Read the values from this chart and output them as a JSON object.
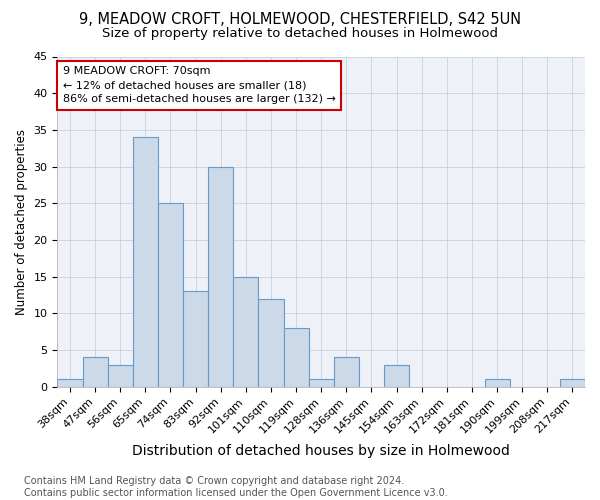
{
  "title1": "9, MEADOW CROFT, HOLMEWOOD, CHESTERFIELD, S42 5UN",
  "title2": "Size of property relative to detached houses in Holmewood",
  "xlabel": "Distribution of detached houses by size in Holmewood",
  "ylabel": "Number of detached properties",
  "categories": [
    "38sqm",
    "47sqm",
    "56sqm",
    "65sqm",
    "74sqm",
    "83sqm",
    "92sqm",
    "101sqm",
    "110sqm",
    "119sqm",
    "128sqm",
    "136sqm",
    "145sqm",
    "154sqm",
    "163sqm",
    "172sqm",
    "181sqm",
    "190sqm",
    "199sqm",
    "208sqm",
    "217sqm"
  ],
  "values": [
    1,
    4,
    3,
    34,
    25,
    13,
    30,
    15,
    12,
    8,
    1,
    4,
    0,
    3,
    0,
    0,
    0,
    1,
    0,
    0,
    1
  ],
  "bar_color": "#ccd9e8",
  "bar_edge_color": "#6699cc",
  "annotation_text": "9 MEADOW CROFT: 70sqm\n← 12% of detached houses are smaller (18)\n86% of semi-detached houses are larger (132) →",
  "annotation_box_color": "#ffffff",
  "annotation_box_edge": "#cc0000",
  "ylim": [
    0,
    45
  ],
  "yticks": [
    0,
    5,
    10,
    15,
    20,
    25,
    30,
    35,
    40,
    45
  ],
  "bg_color": "#eef2f8",
  "footnote": "Contains HM Land Registry data © Crown copyright and database right 2024.\nContains public sector information licensed under the Open Government Licence v3.0.",
  "title1_fontsize": 10.5,
  "title2_fontsize": 9.5,
  "xlabel_fontsize": 10,
  "ylabel_fontsize": 8.5,
  "tick_fontsize": 8,
  "annot_fontsize": 8,
  "footnote_fontsize": 7
}
